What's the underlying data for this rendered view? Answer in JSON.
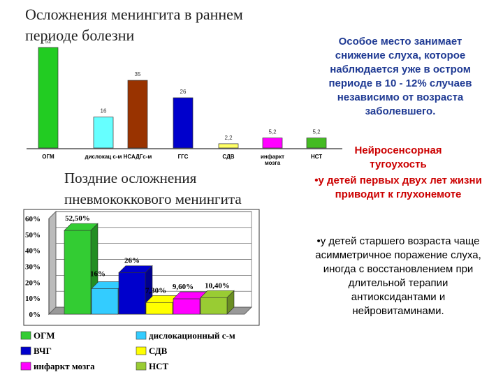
{
  "chart_data": [
    {
      "type": "bar",
      "title": "Осложнения менингита в раннем периоде болезни",
      "categories": [
        "ОГМ",
        "дислокац с-м",
        "НСАДГс-м",
        "ГГС",
        "СДВ",
        "инфаркт мозга",
        "НСТ"
      ],
      "values": [
        52,
        16,
        35,
        26,
        2.2,
        5.2,
        5.2
      ],
      "value_labels": [
        "52",
        "16",
        "35",
        "26",
        "2,2",
        "5,2",
        "5,2"
      ],
      "colors": [
        "#22cc22",
        "#66ffff",
        "#993300",
        "#0000cc",
        "#ffff66",
        "#ff00ff",
        "#44bb22"
      ]
    },
    {
      "type": "bar3d",
      "title": "Поздние осложнения пневмококкового менингита",
      "series": [
        {
          "name": "ОГМ",
          "color": "#33cc33",
          "values": [
            52.5
          ],
          "value_labels": [
            "52,50%"
          ]
        },
        {
          "name": "дислокационный с-м",
          "color": "#33ccff",
          "values": [
            16
          ],
          "value_labels": [
            "16%"
          ]
        },
        {
          "name": "ВЧГ",
          "color": "#0000cc",
          "values": [
            26
          ],
          "value_labels": [
            "26%"
          ]
        },
        {
          "name": "СДВ",
          "color": "#ffff00",
          "values": [
            7.3
          ],
          "value_labels": [
            "7,30%"
          ]
        },
        {
          "name": "инфаркт мозга",
          "color": "#ff00ff",
          "values": [
            9.6
          ],
          "value_labels": [
            "9,60%"
          ]
        },
        {
          "name": "НСТ",
          "color": "#99cc33",
          "values": [
            10.4
          ],
          "value_labels": [
            "10,40%"
          ]
        }
      ],
      "ylim": [
        0,
        60
      ],
      "yticks": [
        {
          "value": 0,
          "label": "0%"
        },
        {
          "value": 10,
          "label": "10%"
        },
        {
          "value": 20,
          "label": "20%"
        },
        {
          "value": 30,
          "label": "30%"
        },
        {
          "value": 40,
          "label": "40%"
        },
        {
          "value": 50,
          "label": "50%"
        },
        {
          "value": 60,
          "label": "60%"
        }
      ],
      "grid": true
    }
  ],
  "text": {
    "intro": "Особое место занимает снижение слуха, которое наблюдается уже в остром периоде в 10 - 12% случаев независимо от возраста заболевшего.",
    "heading": "Нейросенсорная тугоухость",
    "item1": "•у детей первых двух лет жизни приводит к глухонемоте",
    "item2": "•у детей старшего возраста чаще асимметричное поражение слуха, иногда с восстановлением при длительной терапии антиоксидантами и нейровитаминами."
  }
}
